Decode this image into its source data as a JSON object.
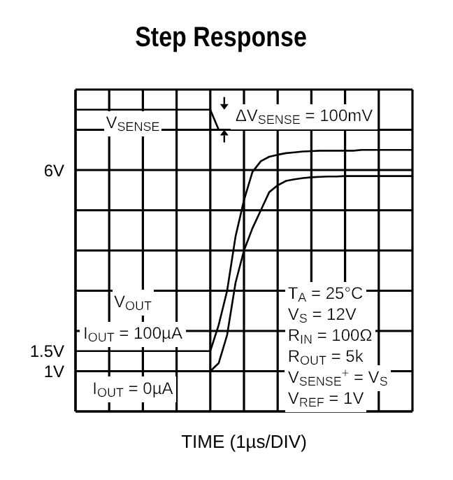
{
  "chart_data": {
    "type": "line",
    "title": "Step Response",
    "xlabel": "TIME (1µs/DIV)",
    "categories": [
      null,
      null,
      null,
      null,
      null,
      null,
      null,
      null,
      null,
      null,
      null,
      null,
      null,
      null,
      null,
      null,
      null,
      null,
      null,
      null,
      null,
      null,
      null,
      null,
      null,
      null,
      null,
      null,
      null,
      null,
      null,
      null,
      null,
      null,
      null,
      null,
      null,
      null,
      null,
      null,
      null
    ],
    "ylim": [
      0,
      8
    ],
    "yticks": [
      {
        "value": 0,
        "label": null
      },
      {
        "value": 1,
        "label": "1V"
      },
      {
        "value": 1.5,
        "label": "1.5V"
      },
      {
        "value": 2,
        "label": null
      },
      {
        "value": 3,
        "label": null
      },
      {
        "value": 4,
        "label": null
      },
      {
        "value": 5,
        "label": null
      },
      {
        "value": 6,
        "label": "6V"
      },
      {
        "value": 7,
        "label": null
      },
      {
        "value": 8,
        "label": null
      }
    ],
    "grid": true,
    "marker": "none",
    "line_style": "solid",
    "series": [
      {
        "name": "V$_{SENSE}$",
        "color": "#000000",
        "values": [
          7.5,
          7.5,
          7.5,
          7.5,
          7.5,
          7.5,
          7.5,
          7.5,
          7.5,
          7.5,
          7.5,
          7.5,
          7.5,
          7.5,
          7.5,
          7.5,
          7.5,
          7.0,
          7.0,
          7.0,
          7.0,
          7.0,
          7.0,
          7.0,
          7.0,
          7.0,
          7.0,
          7.0,
          7.0,
          7.0,
          7.0,
          7.0,
          7.0,
          7.0,
          7.0,
          7.0,
          7.0,
          7.0,
          7.0,
          7.0,
          7.0
        ]
      },
      {
        "name": "I$_{OUT}$ = 100µA",
        "color": "#000000",
        "values": [
          1.5,
          1.5,
          1.5,
          1.5,
          1.5,
          1.5,
          1.5,
          1.5,
          1.5,
          1.5,
          1.5,
          1.5,
          1.5,
          1.5,
          1.5,
          1.5,
          1.5,
          2.15,
          3.0,
          4.35,
          5.25,
          5.95,
          6.22,
          6.33,
          6.38,
          6.42,
          6.44,
          6.46,
          6.47,
          6.48,
          6.48,
          6.48,
          6.48,
          6.48,
          6.5,
          6.5,
          6.5,
          6.5,
          6.5,
          6.5,
          6.5
        ]
      },
      {
        "name": "I$_{OUT}$ = 0µA",
        "color": "#000000",
        "values": [
          1,
          1,
          1,
          1,
          1,
          1,
          1,
          1,
          1,
          1,
          1,
          1,
          1,
          1,
          1,
          1,
          1,
          1.2,
          1.9,
          3.2,
          4.0,
          4.55,
          5.0,
          5.45,
          5.62,
          5.73,
          5.77,
          5.8,
          5.82,
          5.83,
          5.84,
          5.84,
          5.85,
          5.85,
          5.85,
          5.85,
          5.85,
          5.85,
          5.85,
          5.85,
          5.85
        ]
      }
    ],
    "annotations": [
      "ΔV$_{SENSE}$ = 100mV",
      "V$_{OUT}$",
      "T$_{A}$ = 25°C",
      "V$_{S}$ = 12V",
      "R$_{IN}$ = 100Ω",
      "R$_{OUT}$ = 5k",
      "V$_{SENSE}$$^{+}$ = V$_{S}$",
      "V$_{REF}$ = 1V"
    ]
  }
}
